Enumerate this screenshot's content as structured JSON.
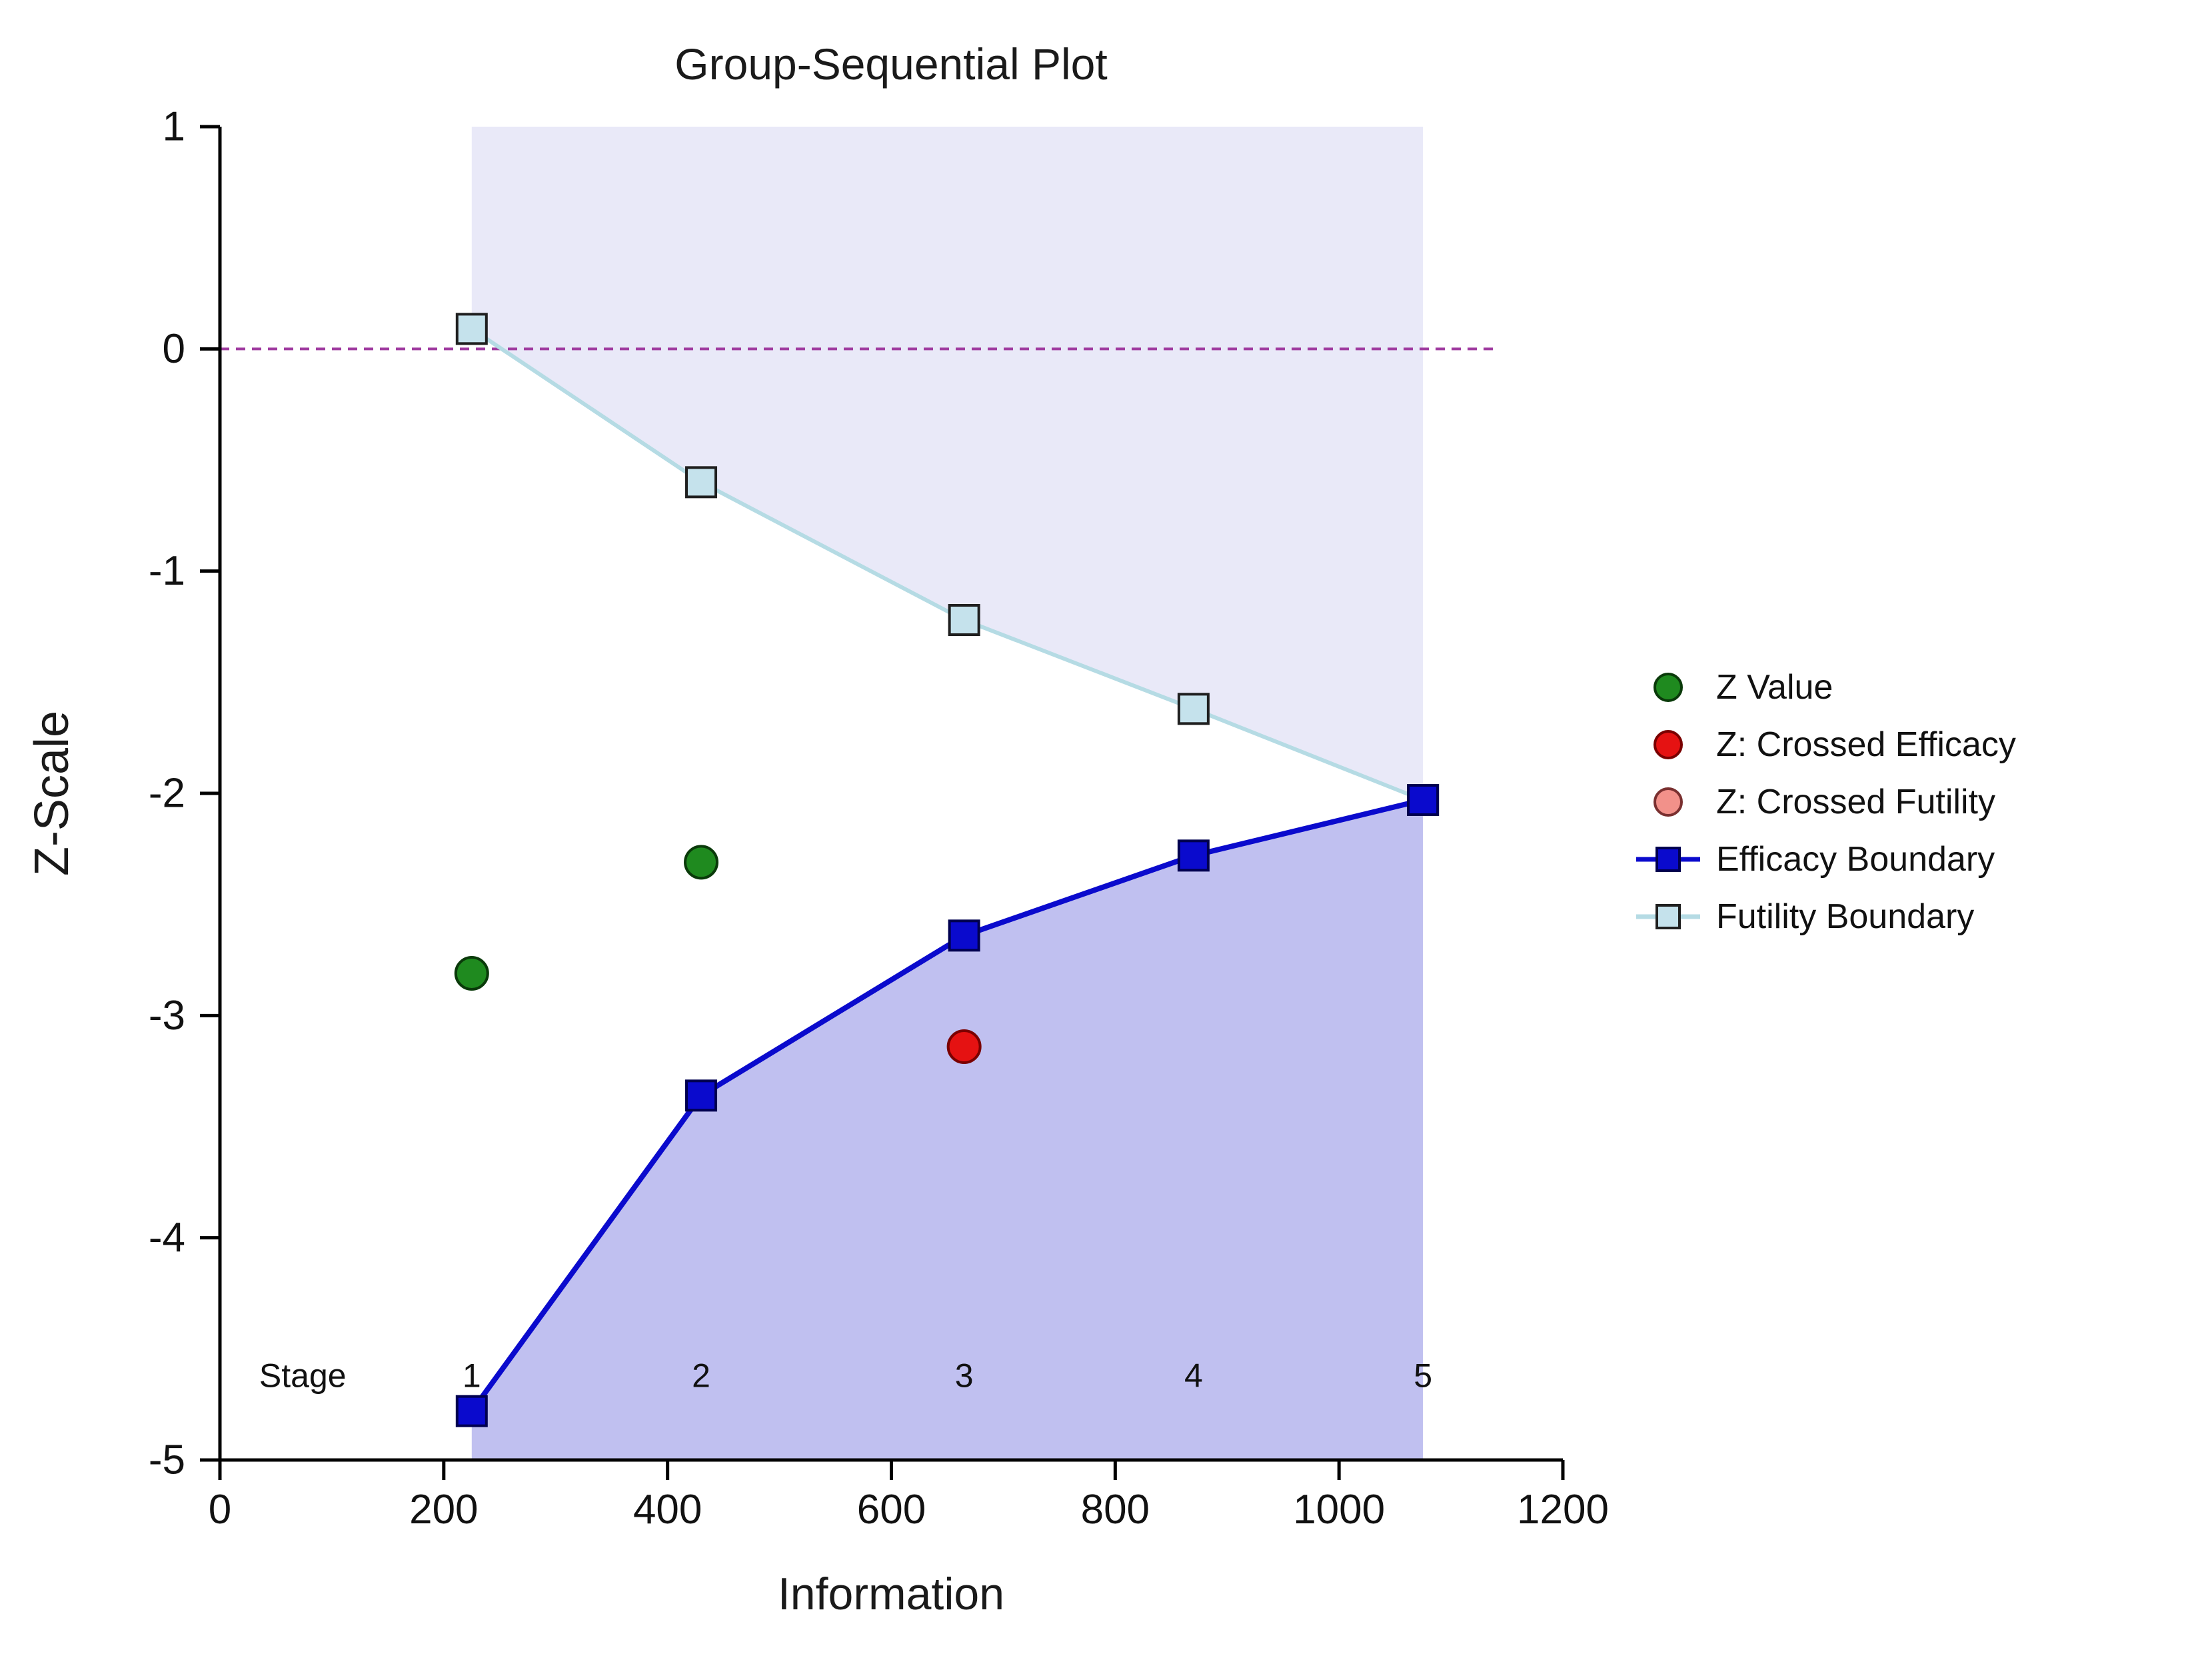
{
  "title": "Group-Sequential Plot",
  "chart_data": {
    "type": "line",
    "title": "Group-Sequential Plot",
    "xlabel": "Information",
    "ylabel": "Z-Scale",
    "xlim": [
      0,
      1200
    ],
    "ylim": [
      -5,
      1
    ],
    "x_ticks": [
      0,
      200,
      400,
      600,
      800,
      1000,
      1200
    ],
    "y_ticks": [
      1,
      0,
      -1,
      -2,
      -3,
      -4,
      -5
    ],
    "grid": false,
    "legend_position": "right",
    "stage_row": {
      "label": "Stage",
      "label_x": 74,
      "y": -4.62,
      "x": [
        225,
        430,
        665,
        870,
        1075
      ],
      "stages": [
        "1",
        "2",
        "3",
        "4",
        "5"
      ]
    },
    "series": [
      {
        "name": "Futility Boundary",
        "x": [
          225,
          430,
          665,
          870,
          1075
        ],
        "y": [
          0.09,
          -0.6,
          -1.22,
          -1.62,
          -2.03
        ],
        "marker": "square",
        "line_color": "#B5DBE4",
        "fill": "#C5E2EC",
        "edge": "#1F1F1F"
      },
      {
        "name": "Efficacy Boundary",
        "x": [
          225,
          430,
          665,
          870,
          1075
        ],
        "y": [
          -4.78,
          -3.36,
          -2.64,
          -2.28,
          -2.03
        ],
        "marker": "square",
        "line_color": "#0A0ACD",
        "fill": "#0A0ACD",
        "edge": "#000050"
      },
      {
        "name": "Z Value",
        "x": [
          225,
          430
        ],
        "y": [
          -2.81,
          -2.31
        ],
        "marker": "circle",
        "fill": "#1F8A1F",
        "edge": "#0A3A0A"
      },
      {
        "name": "Z: Crossed Efficacy",
        "x": [
          665
        ],
        "y": [
          -3.14
        ],
        "marker": "circle",
        "fill": "#E51212",
        "edge": "#7A0000"
      },
      {
        "name": "Z: Crossed Futility",
        "x": [],
        "y": [],
        "marker": "circle",
        "fill": "#F2918A",
        "edge": "#7A3030"
      }
    ],
    "reference_line": {
      "y": 0,
      "x_start": 0,
      "x_end": 1140,
      "color": "#A03CA0",
      "style": "dashed"
    },
    "regions": [
      {
        "name": "futility-region",
        "fill": "#E9E9F8",
        "bounded_by": "Futility Boundary",
        "extends_to": "top"
      },
      {
        "name": "efficacy-region",
        "fill": "#C0C0F0",
        "bounded_by": "Efficacy Boundary",
        "extends_to": "bottom"
      }
    ],
    "legend": [
      {
        "label": "Z Value",
        "marker": "circle",
        "fill": "#1F8A1F",
        "edge": "#0A3A0A"
      },
      {
        "label": "Z: Crossed Efficacy",
        "marker": "circle",
        "fill": "#E51212",
        "edge": "#7A0000"
      },
      {
        "label": "Z: Crossed Futility",
        "marker": "circle",
        "fill": "#F2918A",
        "edge": "#7A3030"
      },
      {
        "label": "Efficacy Boundary",
        "marker": "square-line",
        "fill": "#0A0ACD",
        "edge": "#000050",
        "line_color": "#0A0ACD"
      },
      {
        "label": "Futility Boundary",
        "marker": "square-line",
        "fill": "#C5E2EC",
        "edge": "#1F1F1F",
        "line_color": "#B5DBE4"
      }
    ]
  }
}
